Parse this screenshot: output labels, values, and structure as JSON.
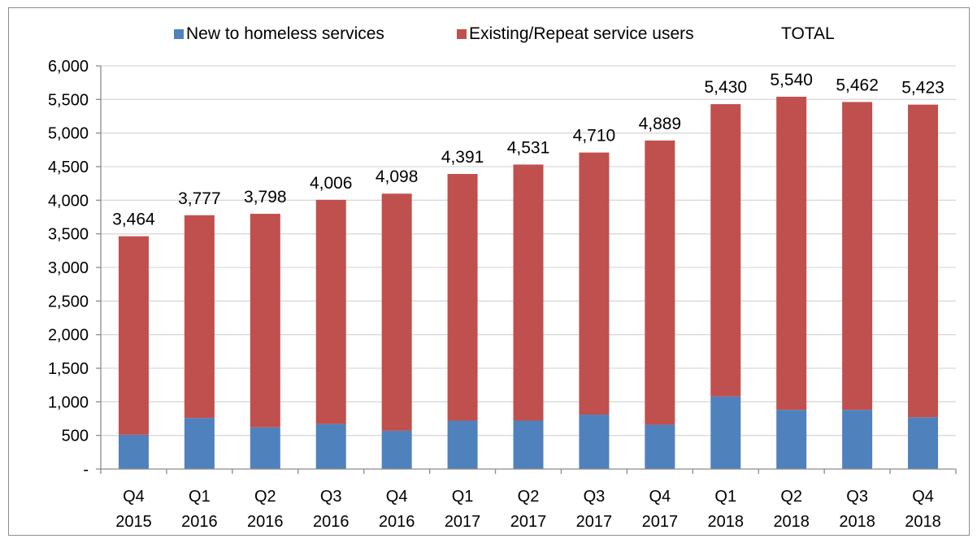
{
  "chart_data": {
    "type": "bar",
    "stacked": true,
    "categories": [
      [
        "Q4",
        "2015"
      ],
      [
        "Q1",
        "2016"
      ],
      [
        "Q2",
        "2016"
      ],
      [
        "Q3",
        "2016"
      ],
      [
        "Q4",
        "2016"
      ],
      [
        "Q1",
        "2017"
      ],
      [
        "Q2",
        "2017"
      ],
      [
        "Q3",
        "2017"
      ],
      [
        "Q4",
        "2017"
      ],
      [
        "Q1",
        "2018"
      ],
      [
        "Q2",
        "2018"
      ],
      [
        "Q3",
        "2018"
      ],
      [
        "Q4",
        "2018"
      ]
    ],
    "series": [
      {
        "name": "New to homeless services",
        "color": "#4f81bd",
        "values": [
          510,
          760,
          620,
          670,
          570,
          720,
          720,
          810,
          660,
          1080,
          880,
          880,
          770
        ]
      },
      {
        "name": "Existing/Repeat service users",
        "color": "#c0504d",
        "values": [
          2954,
          3017,
          3178,
          3336,
          3528,
          3671,
          3811,
          3900,
          4229,
          4350,
          4660,
          4582,
          4653
        ]
      }
    ],
    "totals": {
      "name": "TOTAL",
      "values": [
        3464,
        3777,
        3798,
        4006,
        4098,
        4391,
        4531,
        4710,
        4889,
        5430,
        5540,
        5462,
        5423
      ],
      "labels": [
        "3,464",
        "3,777",
        "3,798",
        "4,006",
        "4,098",
        "4,391",
        "4,531",
        "4,710",
        "4,889",
        "5,430",
        "5,540",
        "5,462",
        "5,423"
      ]
    },
    "y_ticks": [
      {
        "value": 0,
        "label": "-"
      },
      {
        "value": 500,
        "label": "500"
      },
      {
        "value": 1000,
        "label": "1,000"
      },
      {
        "value": 1500,
        "label": "1,500"
      },
      {
        "value": 2000,
        "label": "2,000"
      },
      {
        "value": 2500,
        "label": "2,500"
      },
      {
        "value": 3000,
        "label": "3,000"
      },
      {
        "value": 3500,
        "label": "3,500"
      },
      {
        "value": 4000,
        "label": "4,000"
      },
      {
        "value": 4500,
        "label": "4,500"
      },
      {
        "value": 5000,
        "label": "5,000"
      },
      {
        "value": 5500,
        "label": "5,500"
      },
      {
        "value": 6000,
        "label": "6,000"
      }
    ],
    "ylim": [
      0,
      6000
    ],
    "grid": true,
    "legend_position": "top",
    "title": "",
    "xlabel": "",
    "ylabel": ""
  }
}
